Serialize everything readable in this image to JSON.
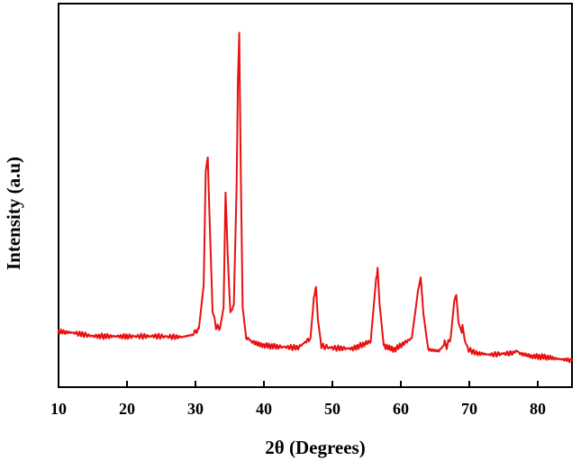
{
  "chart_data": {
    "type": "line",
    "title": "",
    "xlabel": "2θ (Degrees)",
    "ylabel": "Intensity (a.u)",
    "xlim": [
      10,
      85
    ],
    "ylim": [
      0,
      100
    ],
    "x_ticks": [
      10,
      20,
      30,
      40,
      50,
      60,
      70,
      80
    ],
    "x_tick_labels": [
      "10",
      "20",
      "30",
      "40",
      "50",
      "60",
      "70",
      "80"
    ],
    "y_ticks_shown": false,
    "grid": false,
    "legend": "none",
    "series": [
      {
        "color": "#e81010",
        "x": [
          10,
          12,
          15,
          20,
          24,
          28,
          29.5,
          30.5,
          31.2,
          31.5,
          31.8,
          32.1,
          32.5,
          33,
          33.6,
          34.1,
          34.4,
          34.7,
          35.1,
          35.6,
          36.0,
          36.2,
          36.4,
          36.6,
          36.9,
          37.4,
          38.5,
          40,
          42,
          45,
          46.8,
          47.3,
          47.6,
          47.9,
          48.4,
          50,
          53,
          55.6,
          56.3,
          56.6,
          56.9,
          57.5,
          59,
          61.6,
          62.5,
          62.9,
          63.3,
          64,
          65.5,
          66.2,
          66.4,
          66.7,
          67.3,
          67.8,
          68.1,
          68.4,
          68.8,
          69.0,
          69.3,
          69.8,
          71,
          73,
          76.3,
          76.9,
          77.5,
          79,
          81,
          83,
          85
        ],
        "values": [
          7.5,
          7.2,
          6.1,
          6.0,
          6.1,
          5.8,
          6.5,
          8.5,
          22,
          58,
          62,
          40,
          14,
          9,
          8.8,
          15,
          51,
          32,
          13,
          16,
          52,
          86,
          101,
          60,
          15,
          5.8,
          4.0,
          3.2,
          2.8,
          2.5,
          5.5,
          18,
          21.5,
          11,
          3.0,
          2.4,
          2.2,
          4.5,
          22,
          27.5,
          16,
          3.0,
          1.8,
          5.5,
          20,
          24.5,
          13,
          2.0,
          1.4,
          3.0,
          4.2,
          2.8,
          6.0,
          17,
          19,
          11,
          7.0,
          9.0,
          5.0,
          2.0,
          0.8,
          0.3,
          0.8,
          1.5,
          0.6,
          -0.2,
          -0.4,
          -1.0,
          -1.5
        ]
      }
    ]
  }
}
